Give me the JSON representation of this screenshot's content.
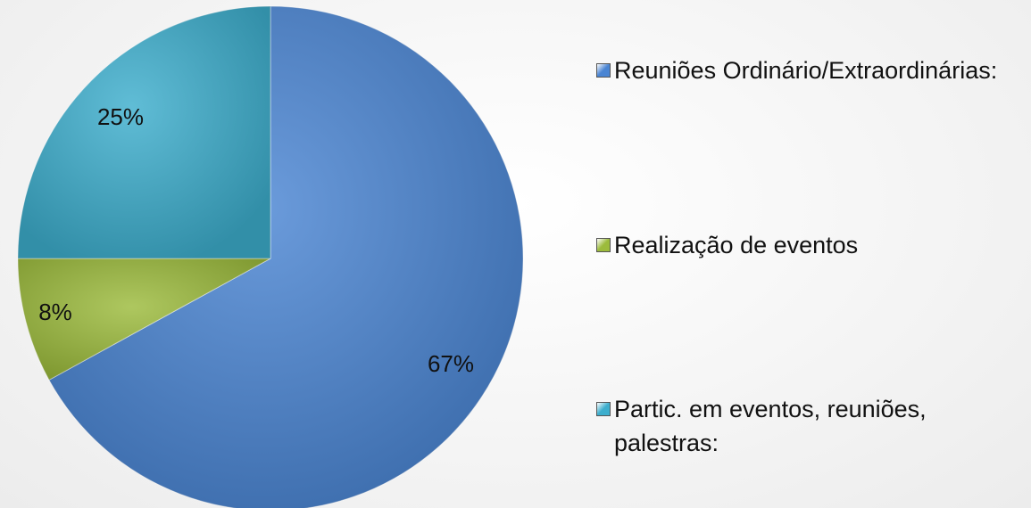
{
  "chart_data": {
    "type": "pie",
    "categories": [
      "Reuniões Ordinário/Extraordinárias:",
      "Realização de eventos",
      "Partic. em eventos, reuniões, palestras:"
    ],
    "values": [
      67,
      8,
      25
    ],
    "value_labels": [
      "67%",
      "8%",
      "25%"
    ],
    "colors": [
      "#4a85d3",
      "#9cbb3c",
      "#3daecd"
    ],
    "legend": "right"
  }
}
